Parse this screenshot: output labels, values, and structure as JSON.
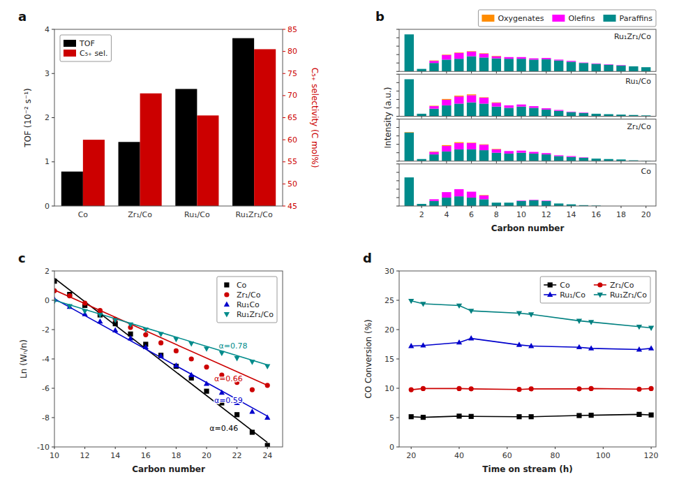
{
  "chart_data": [
    {
      "type": "bar",
      "title": "a",
      "categories": [
        "Co",
        "Zr₁/Co",
        "Ru₁/Co",
        "Ru₁Zr₁/Co"
      ],
      "series": [
        {
          "name": "TOF",
          "color": "#000000",
          "values": [
            0.78,
            1.45,
            2.65,
            3.8
          ]
        },
        {
          "name": "C₅₊ sel.",
          "color": "#cc0000",
          "values": [
            60.0,
            70.5,
            65.5,
            80.5
          ],
          "axis": "y2"
        }
      ],
      "ylabel": "TOF (10⁻² s⁻¹)",
      "y2label": "C₅₊ selectivity (C mol%)",
      "ylim": [
        0,
        4
      ],
      "yticks": [
        0,
        1,
        2,
        3,
        4
      ],
      "y2lim": [
        45,
        85
      ],
      "y2ticks": [
        45,
        50,
        55,
        60,
        65,
        70,
        75,
        80,
        85
      ],
      "legend": "upper left"
    },
    {
      "type": "bar",
      "stacked": true,
      "title": "b",
      "ylabel": "Intensity (a.u.)",
      "annotations": [
        {
          "text": "Ru₁Zr₁/Co"
        }
      ],
      "legend": "upper right",
      "tick_labels": false,
      "x": [
        1,
        2,
        3,
        4,
        5,
        6,
        7,
        8,
        9,
        10,
        11,
        12,
        13,
        14,
        15,
        16,
        17,
        18,
        19,
        20
      ],
      "xlim": [
        0.2,
        20.8
      ],
      "xticks": [
        2,
        4,
        6,
        8,
        10,
        12,
        14,
        16,
        18,
        20
      ],
      "ylim": [
        0,
        1
      ],
      "yticks": [
        0,
        0.2,
        0.4,
        0.6,
        0.8,
        1
      ],
      "series": [
        {
          "name": "Paraffins",
          "color": "#008B8B",
          "values": [
            0.88,
            0.06,
            0.2,
            0.28,
            0.3,
            0.36,
            0.33,
            0.31,
            0.3,
            0.3,
            0.28,
            0.29,
            0.26,
            0.23,
            0.2,
            0.18,
            0.16,
            0.14,
            0.12,
            0.1
          ]
        },
        {
          "name": "Olefins",
          "color": "#FF00FF",
          "values": [
            0.0,
            0.0,
            0.05,
            0.11,
            0.14,
            0.11,
            0.09,
            0.05,
            0.04,
            0.04,
            0.03,
            0.03,
            0.02,
            0.02,
            0.01,
            0.01,
            0.01,
            0.01,
            0.0,
            0.0
          ]
        },
        {
          "name": "Oxygenates",
          "color": "#FF8C00",
          "values": [
            0.0,
            0.0,
            0.01,
            0.01,
            0.01,
            0.01,
            0.01,
            0.01,
            0.0,
            0.0,
            0.0,
            0.0,
            0.0,
            0.0,
            0.0,
            0.0,
            0.0,
            0.0,
            0.0,
            0.0
          ]
        }
      ]
    },
    {
      "type": "bar",
      "stacked": true,
      "annotations": [
        {
          "text": "Ru₁/Co"
        }
      ],
      "tick_labels": false,
      "x": [
        1,
        2,
        3,
        4,
        5,
        6,
        7,
        8,
        9,
        10,
        11,
        12,
        13,
        14,
        15,
        16,
        17,
        18,
        19,
        20
      ],
      "xlim": [
        0.2,
        20.8
      ],
      "xticks": [
        2,
        4,
        6,
        8,
        10,
        12,
        14,
        16,
        18,
        20
      ],
      "ylim": [
        0,
        1
      ],
      "yticks": [
        0,
        0.2,
        0.4,
        0.6,
        0.8,
        1
      ],
      "series": [
        {
          "name": "Paraffins",
          "color": "#008B8B",
          "values": [
            0.88,
            0.06,
            0.18,
            0.26,
            0.3,
            0.33,
            0.3,
            0.23,
            0.2,
            0.23,
            0.2,
            0.16,
            0.13,
            0.1,
            0.08,
            0.06,
            0.05,
            0.04,
            0.03,
            0.02
          ]
        },
        {
          "name": "Olefins",
          "color": "#FF00FF",
          "values": [
            0.0,
            0.0,
            0.06,
            0.13,
            0.17,
            0.17,
            0.14,
            0.09,
            0.06,
            0.05,
            0.04,
            0.03,
            0.02,
            0.01,
            0.01,
            0.0,
            0.0,
            0.0,
            0.0,
            0.0
          ]
        },
        {
          "name": "Oxygenates",
          "color": "#FF8C00",
          "values": [
            0.0,
            0.0,
            0.01,
            0.02,
            0.02,
            0.02,
            0.01,
            0.01,
            0.0,
            0.0,
            0.0,
            0.0,
            0.0,
            0.0,
            0.0,
            0.0,
            0.0,
            0.0,
            0.0,
            0.0
          ]
        }
      ]
    },
    {
      "type": "bar",
      "stacked": true,
      "annotations": [
        {
          "text": "Zr₁/Co"
        }
      ],
      "tick_labels": false,
      "x": [
        1,
        2,
        3,
        4,
        5,
        6,
        7,
        8,
        9,
        10,
        11,
        12,
        13,
        14,
        15,
        16,
        17,
        18,
        19,
        20
      ],
      "xlim": [
        0.2,
        20.8
      ],
      "xticks": [
        2,
        4,
        6,
        8,
        10,
        12,
        14,
        16,
        18,
        20
      ],
      "ylim": [
        0,
        1
      ],
      "yticks": [
        0,
        0.2,
        0.4,
        0.6,
        0.8,
        1
      ],
      "series": [
        {
          "name": "Paraffins",
          "color": "#008B8B",
          "values": [
            0.68,
            0.05,
            0.16,
            0.23,
            0.28,
            0.28,
            0.26,
            0.2,
            0.18,
            0.2,
            0.18,
            0.16,
            0.12,
            0.1,
            0.08,
            0.06,
            0.05,
            0.04,
            0.02,
            0.01
          ]
        },
        {
          "name": "Olefins",
          "color": "#FF00FF",
          "values": [
            0.0,
            0.0,
            0.06,
            0.13,
            0.15,
            0.15,
            0.13,
            0.08,
            0.06,
            0.05,
            0.04,
            0.03,
            0.02,
            0.02,
            0.01,
            0.0,
            0.0,
            0.0,
            0.0,
            0.0
          ]
        },
        {
          "name": "Oxygenates",
          "color": "#FF8C00",
          "values": [
            0.01,
            0.0,
            0.01,
            0.02,
            0.02,
            0.01,
            0.01,
            0.01,
            0.0,
            0.0,
            0.0,
            0.0,
            0.0,
            0.0,
            0.0,
            0.0,
            0.0,
            0.0,
            0.0,
            0.0
          ]
        }
      ]
    },
    {
      "type": "bar",
      "stacked": true,
      "annotations": [
        {
          "text": "Co"
        }
      ],
      "tick_labels": "x",
      "xlabel": "Carbon number",
      "x": [
        1,
        2,
        3,
        4,
        5,
        6,
        7,
        8,
        9,
        10,
        11,
        12,
        13,
        14,
        15,
        16,
        17,
        18,
        19,
        20
      ],
      "xlim": [
        0.2,
        20.8
      ],
      "xticks": [
        2,
        4,
        6,
        8,
        10,
        12,
        14,
        16,
        18,
        20
      ],
      "ylim": [
        0,
        1
      ],
      "yticks": [
        0,
        0.2,
        0.4,
        0.6,
        0.8,
        1
      ],
      "series": [
        {
          "name": "Paraffins",
          "color": "#008B8B",
          "values": [
            0.68,
            0.05,
            0.12,
            0.2,
            0.23,
            0.2,
            0.16,
            0.08,
            0.08,
            0.12,
            0.14,
            0.12,
            0.06,
            0.04,
            0.02,
            0.01,
            0.0,
            0.0,
            0.0,
            0.0
          ]
        },
        {
          "name": "Olefins",
          "color": "#FF00FF",
          "values": [
            0.0,
            0.0,
            0.04,
            0.13,
            0.17,
            0.14,
            0.09,
            0.0,
            0.0,
            0.01,
            0.01,
            0.01,
            0.0,
            0.0,
            0.0,
            0.0,
            0.0,
            0.0,
            0.0,
            0.0
          ]
        },
        {
          "name": "Oxygenates",
          "color": "#FF8C00",
          "values": [
            0.0,
            0.0,
            0.0,
            0.0,
            0.0,
            0.0,
            0.01,
            0.0,
            0.0,
            0.0,
            0.0,
            0.0,
            0.0,
            0.0,
            0.0,
            0.0,
            0.0,
            0.0,
            0.0,
            0.0
          ]
        }
      ]
    },
    {
      "type": "line",
      "title": "c",
      "xlabel": "Carbon number",
      "ylabel": "Ln (Wₙ/n)",
      "xlim": [
        10,
        25
      ],
      "ylim": [
        -10,
        2
      ],
      "xticks": [
        10,
        12,
        14,
        16,
        18,
        20,
        22,
        24
      ],
      "yticks": [
        -10,
        -8,
        -6,
        -4,
        -2,
        0,
        2
      ],
      "legend": "upper right",
      "series": [
        {
          "type": "line",
          "color": "#000000",
          "x": [
            10,
            24
          ],
          "values": [
            1.5,
            -9.7
          ]
        },
        {
          "type": "line",
          "color": "#cc0000",
          "x": [
            10,
            24
          ],
          "values": [
            0.7,
            -5.8
          ]
        },
        {
          "type": "line",
          "color": "#0000cc",
          "x": [
            10,
            24
          ],
          "values": [
            0.1,
            -7.9
          ]
        },
        {
          "type": "line",
          "color": "#008B8B",
          "x": [
            10,
            24
          ],
          "values": [
            0.0,
            -4.4
          ]
        },
        {
          "type": "scatter",
          "name": "Co",
          "color": "#000000",
          "marker": "square",
          "x": [
            10,
            11,
            12,
            13,
            14,
            15,
            16,
            17,
            18,
            19,
            20,
            21,
            22,
            23,
            24
          ],
          "values": [
            1.3,
            0.4,
            -0.35,
            -1.0,
            -1.6,
            -2.3,
            -3.0,
            -3.75,
            -4.5,
            -5.3,
            -6.2,
            -7.0,
            -7.8,
            -9.0,
            -9.9
          ]
        },
        {
          "type": "scatter",
          "name": "Zr₁/Co",
          "color": "#cc0000",
          "marker": "circle",
          "x": [
            10,
            11,
            12,
            13,
            14,
            15,
            16,
            17,
            18,
            19,
            20,
            21,
            22,
            23,
            24
          ],
          "values": [
            0.65,
            0.3,
            -0.2,
            -0.7,
            -1.3,
            -1.85,
            -2.35,
            -2.9,
            -3.45,
            -4.0,
            -4.55,
            -5.1,
            -5.6,
            -6.1,
            -5.8
          ]
        },
        {
          "type": "scatter",
          "name": "Ru₁Co",
          "color": "#0000cc",
          "marker": "triangle-up",
          "x": [
            10,
            11,
            12,
            13,
            14,
            15,
            16,
            17,
            18,
            19,
            20,
            21,
            22,
            23,
            24
          ],
          "values": [
            0.05,
            -0.45,
            -0.95,
            -1.45,
            -2.05,
            -2.6,
            -3.2,
            -3.8,
            -4.45,
            -5.1,
            -5.7,
            -6.3,
            -7.0,
            -7.6,
            -8.0
          ]
        },
        {
          "type": "scatter",
          "name": "Ru₁Zr₁/Co",
          "color": "#008B8B",
          "marker": "triangle-down",
          "x": [
            10,
            11,
            12,
            13,
            14,
            15,
            16,
            17,
            18,
            19,
            20,
            21,
            22,
            23,
            24
          ],
          "values": [
            -0.05,
            -0.4,
            -0.75,
            -1.0,
            -1.35,
            -1.65,
            -2.0,
            -2.3,
            -2.65,
            -2.95,
            -3.3,
            -3.6,
            -3.95,
            -4.2,
            -4.5
          ]
        }
      ],
      "annotations": [
        {
          "text": "α=0.78",
          "x": 20.8,
          "y": -3.3,
          "color": "#008B8B"
        },
        {
          "text": "α=0.66",
          "x": 20.5,
          "y": -5.5,
          "color": "#cc0000"
        },
        {
          "text": "α=0.59",
          "x": 20.5,
          "y": -7.0,
          "color": "#0000cc"
        },
        {
          "text": "α=0.46",
          "x": 20.2,
          "y": -8.9,
          "color": "#000000"
        }
      ]
    },
    {
      "type": "line",
      "title": "d",
      "xlabel": "Time on stream (h)",
      "ylabel": "CO Conversion (%)",
      "xlim": [
        15,
        122
      ],
      "ylim": [
        0,
        30
      ],
      "xticks": [
        20,
        40,
        60,
        80,
        100,
        120
      ],
      "yticks": [
        0,
        5,
        10,
        15,
        20,
        25,
        30
      ],
      "legend": "upper right",
      "series": [
        {
          "name": "Co",
          "color": "#000000",
          "marker": "square",
          "x": [
            20,
            25,
            40,
            45,
            65,
            70,
            90,
            95,
            115,
            120
          ],
          "values": [
            5.15,
            5.05,
            5.25,
            5.2,
            5.15,
            5.15,
            5.35,
            5.4,
            5.55,
            5.45
          ]
        },
        {
          "name": "Zr₁/Co",
          "color": "#cc0000",
          "marker": "circle",
          "x": [
            20,
            25,
            40,
            45,
            65,
            70,
            90,
            95,
            115,
            120
          ],
          "values": [
            9.75,
            9.95,
            9.95,
            9.9,
            9.8,
            9.9,
            9.9,
            9.95,
            9.85,
            9.95
          ]
        },
        {
          "name": "Ru₁/Co",
          "color": "#0000cc",
          "marker": "triangle-up",
          "x": [
            20,
            25,
            40,
            45,
            65,
            70,
            90,
            95,
            115,
            120
          ],
          "values": [
            17.2,
            17.3,
            17.8,
            18.5,
            17.4,
            17.2,
            17.0,
            16.8,
            16.6,
            16.8
          ]
        },
        {
          "name": "Ru₁Zr₁/Co",
          "color": "#008080",
          "marker": "triangle-down",
          "x": [
            20,
            25,
            40,
            45,
            65,
            70,
            90,
            95,
            115,
            120
          ],
          "values": [
            24.9,
            24.4,
            24.1,
            23.2,
            22.8,
            22.6,
            21.5,
            21.3,
            20.5,
            20.3
          ]
        }
      ]
    }
  ]
}
